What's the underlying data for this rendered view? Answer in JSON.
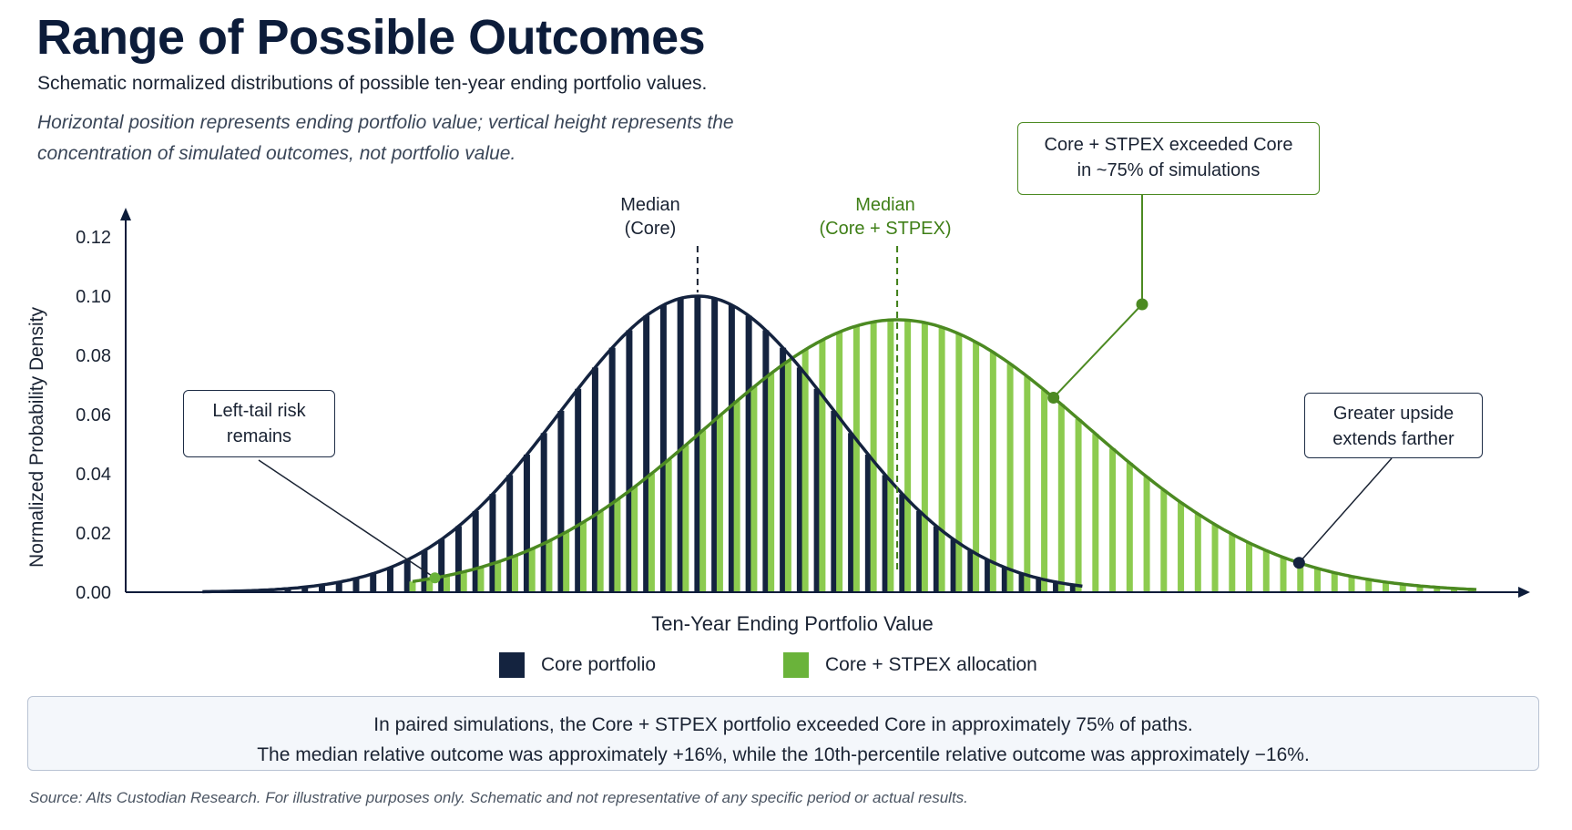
{
  "title": "Range of Possible Outcomes",
  "subtitle": "Schematic normalized distributions of possible ten-year ending portfolio values.",
  "note": "Horizontal position represents ending portfolio value; vertical height represents the concentration of simulated outcomes, not portfolio value.",
  "legend": {
    "core_label": "Core portfolio",
    "stpex_label": "Core + STPEX allocation"
  },
  "annotations": {
    "median_core_line1": "Median",
    "median_core_line2": "(Core)",
    "median_stpex_line1": "Median",
    "median_stpex_line2": "(Core + STPEX)",
    "left_tail_line1": "Left-tail risk",
    "left_tail_line2": "remains",
    "exceeded_line1": "Core + STPEX exceeded Core",
    "exceeded_line2": "in ~75% of simulations",
    "upside_line1": "Greater upside",
    "upside_line2": "extends farther"
  },
  "summary": {
    "line1": "In paired simulations, the Core + STPEX portfolio exceeded Core in approximately 75% of paths.",
    "line2": "The median relative outcome was approximately +16%, while the 10th-percentile relative outcome was approximately −16%."
  },
  "source": "Source: Alts Custodian Research. For illustrative purposes only. Schematic and not representative of any specific period or actual results.",
  "colors": {
    "core": "#14233f",
    "core_line": "#14233f",
    "stpex_bar": "#8ccb4f",
    "stpex_line": "#4c8a22",
    "axis": "#0c1c3a"
  },
  "chart_data": {
    "type": "bar",
    "title": "Range of Possible Outcomes",
    "xlabel": "Ten-Year Ending Portfolio Value",
    "ylabel": "Normalized Probability Density",
    "ylim": [
      0,
      0.12
    ],
    "yticks": [
      "0.00",
      "0.02",
      "0.04",
      "0.06",
      "0.08",
      "0.10",
      "0.12"
    ],
    "xlim": [
      0,
      100
    ],
    "series": [
      {
        "name": "Core portfolio",
        "distribution": "normal",
        "peak_x": 40.7,
        "peak_density": 0.1,
        "sd": 10.5,
        "x_range": [
          3,
          70
        ],
        "median_x": 40.7
      },
      {
        "name": "Core + STPEX allocation",
        "distribution": "normal",
        "peak_x": 55.9,
        "peak_density": 0.092,
        "sd": 14.5,
        "x_range": [
          19,
          100
        ],
        "median_x": 55.9
      }
    ],
    "bar_step": 1.3,
    "legend_position": "bottom",
    "grid": false
  }
}
